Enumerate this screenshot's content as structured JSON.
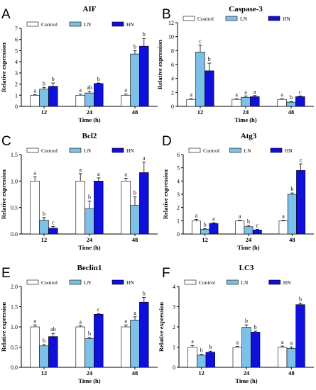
{
  "colors": {
    "control": "#ffffff",
    "ln": "#7ec1e8",
    "hn": "#1010dd"
  },
  "chart_data": [
    {
      "panel": "A",
      "title": "AIF",
      "type": "bar",
      "categories": [
        "12",
        "24",
        "48"
      ],
      "xlabel": "Time (h)",
      "ylabel": "Relative expression",
      "ylim": [
        0,
        7
      ],
      "yticks": [
        0,
        1,
        2,
        3,
        4,
        5,
        6,
        7
      ],
      "legend": [
        "Control",
        "LN",
        "HN"
      ],
      "legend_position": "top",
      "series": [
        {
          "name": "Control",
          "values": [
            1.0,
            1.0,
            1.0
          ],
          "errors": [
            0.05,
            0.1,
            0.1
          ],
          "labels": [
            "a",
            "a",
            "a"
          ]
        },
        {
          "name": "LN",
          "values": [
            1.55,
            1.2,
            4.7
          ],
          "errors": [
            0.15,
            0.15,
            0.3
          ],
          "labels": [
            "b",
            "ab",
            "b"
          ]
        },
        {
          "name": "HN",
          "values": [
            1.8,
            2.05,
            5.4
          ],
          "errors": [
            0.3,
            0.05,
            0.7
          ],
          "labels": [
            "b",
            "b",
            "b"
          ]
        }
      ]
    },
    {
      "panel": "B",
      "title": "Caspase-3",
      "type": "bar",
      "categories": [
        "12",
        "24",
        "48"
      ],
      "xlabel": "Time (h)",
      "ylabel": "Relative expression",
      "ylim": [
        0,
        12
      ],
      "yticks": [
        0,
        2,
        4,
        6,
        8,
        10,
        12
      ],
      "legend": [
        "Control",
        "LN",
        "HN"
      ],
      "legend_position": "top",
      "series": [
        {
          "name": "Control",
          "values": [
            1.0,
            1.0,
            1.0
          ],
          "errors": [
            0.1,
            0.1,
            0.1
          ],
          "labels": [
            "a",
            "a",
            "a"
          ]
        },
        {
          "name": "LN",
          "values": [
            7.8,
            1.3,
            0.6
          ],
          "errors": [
            1.0,
            0.2,
            0.1
          ],
          "labels": [
            "c",
            "a",
            "b"
          ]
        },
        {
          "name": "HN",
          "values": [
            5.1,
            1.4,
            1.4
          ],
          "errors": [
            1.1,
            0.15,
            0.1
          ],
          "labels": [
            "b",
            "a",
            "c"
          ]
        }
      ]
    },
    {
      "panel": "C",
      "title": "Bcl2",
      "type": "bar",
      "categories": [
        "12",
        "24",
        "48"
      ],
      "xlabel": "Time (h)",
      "ylabel": "Relative expression",
      "ylim": [
        0,
        1.5
      ],
      "yticks": [
        0.0,
        0.5,
        1.0,
        1.5
      ],
      "tick_decimals": 1,
      "legend": [
        "Control",
        "LN",
        "HN"
      ],
      "legend_position": "top",
      "series": [
        {
          "name": "Control",
          "values": [
            1.0,
            1.0,
            1.0
          ],
          "errors": [
            0.08,
            0.14,
            0.05
          ],
          "labels": [
            "a",
            "a",
            "a"
          ]
        },
        {
          "name": "LN",
          "values": [
            0.26,
            0.48,
            0.54
          ],
          "errors": [
            0.05,
            0.14,
            0.16
          ],
          "labels": [
            "b",
            "b",
            "b"
          ]
        },
        {
          "name": "HN",
          "values": [
            0.11,
            1.0,
            1.16
          ],
          "errors": [
            0.03,
            0.06,
            0.2
          ],
          "labels": [
            "c",
            "a",
            "a"
          ]
        }
      ]
    },
    {
      "panel": "D",
      "title": "Atg3",
      "type": "bar",
      "categories": [
        "12",
        "24",
        "48"
      ],
      "xlabel": "Time (h)",
      "ylabel": "Relative expression",
      "ylim": [
        0,
        6
      ],
      "yticks": [
        0,
        1,
        2,
        3,
        4,
        5,
        6
      ],
      "legend": [
        "Control",
        "LN",
        "HN"
      ],
      "legend_position": "top",
      "series": [
        {
          "name": "Control",
          "values": [
            1.0,
            1.0,
            1.0
          ],
          "errors": [
            0.1,
            0.05,
            0.05
          ],
          "labels": [
            "a",
            "a",
            "a"
          ]
        },
        {
          "name": "LN",
          "values": [
            0.35,
            0.55,
            3.0
          ],
          "errors": [
            0.05,
            0.1,
            0.1
          ],
          "labels": [
            "b",
            "b",
            "b"
          ]
        },
        {
          "name": "HN",
          "values": [
            0.8,
            0.3,
            4.8
          ],
          "errors": [
            0.05,
            0.05,
            0.5
          ],
          "labels": [
            "a",
            "c",
            "c"
          ]
        }
      ]
    },
    {
      "panel": "E",
      "title": "Beclin1",
      "type": "bar",
      "categories": [
        "12",
        "24",
        "48"
      ],
      "xlabel": "Time (h)",
      "ylabel": "Relative expression",
      "ylim": [
        0,
        2.0
      ],
      "yticks": [
        0.0,
        0.5,
        1.0,
        1.5,
        2.0
      ],
      "tick_decimals": 1,
      "legend": [
        "Control",
        "LN",
        "HN"
      ],
      "legend_position": "top",
      "series": [
        {
          "name": "Control",
          "values": [
            1.0,
            1.0,
            1.0
          ],
          "errors": [
            0.05,
            0.03,
            0.05
          ],
          "labels": [
            "a",
            "a",
            "a"
          ]
        },
        {
          "name": "LN",
          "values": [
            0.53,
            0.71,
            1.17
          ],
          "errors": [
            0.03,
            0.03,
            0.08
          ],
          "labels": [
            "b",
            "b",
            "a"
          ]
        },
        {
          "name": "HN",
          "values": [
            0.76,
            1.31,
            1.61
          ],
          "errors": [
            0.08,
            0.02,
            0.12
          ],
          "labels": [
            "ab",
            "c",
            "b"
          ]
        }
      ]
    },
    {
      "panel": "F",
      "title": "LC3",
      "type": "bar",
      "categories": [
        "12",
        "24",
        "48"
      ],
      "xlabel": "Time (h)",
      "ylabel": "Relative expression",
      "ylim": [
        0,
        4
      ],
      "yticks": [
        0,
        1,
        2,
        3,
        4
      ],
      "legend": [
        "Control",
        "LN",
        "HN"
      ],
      "legend_position": "top",
      "series": [
        {
          "name": "Control",
          "values": [
            1.0,
            1.0,
            1.0
          ],
          "errors": [
            0.08,
            0.03,
            0.05
          ],
          "labels": [
            "a",
            "a",
            "a"
          ]
        },
        {
          "name": "LN",
          "values": [
            0.6,
            1.98,
            0.93
          ],
          "errors": [
            0.05,
            0.12,
            0.08
          ],
          "labels": [
            "b",
            "b",
            "a"
          ]
        },
        {
          "name": "HN",
          "values": [
            0.75,
            1.74,
            3.1
          ],
          "errors": [
            0.05,
            0.05,
            0.08
          ],
          "labels": [
            "b",
            "b",
            "b"
          ]
        }
      ]
    }
  ]
}
